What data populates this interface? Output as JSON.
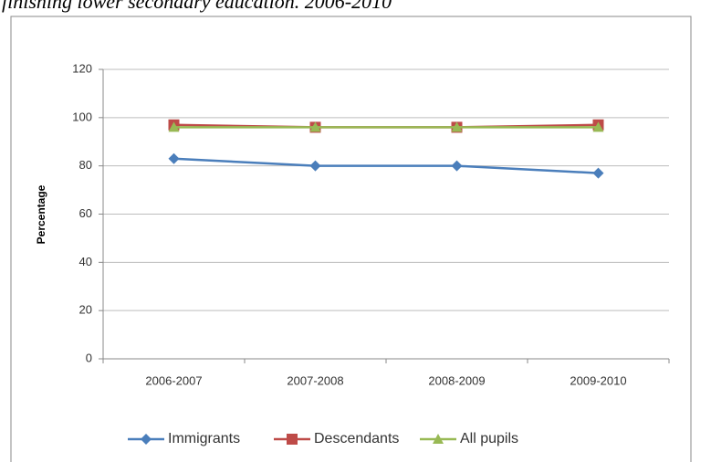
{
  "chart_data": {
    "type": "line",
    "title": "finishing lower secondary education. 2006-2010",
    "y_label": "Percentage",
    "categories": [
      "2006-2007",
      "2007-2008",
      "2008-2009",
      "2009-2010"
    ],
    "series": [
      {
        "name": "Immigrants",
        "color": "#4a7ebb",
        "marker": "diamond",
        "values": [
          83,
          80,
          80,
          77
        ]
      },
      {
        "name": "Descendants",
        "color": "#be4b48",
        "marker": "square",
        "values": [
          97,
          96,
          96,
          97
        ]
      },
      {
        "name": "All pupils",
        "color": "#98b954",
        "marker": "triangle",
        "values": [
          96,
          96,
          96,
          96
        ]
      }
    ],
    "ylim": [
      0,
      120
    ],
    "yticks": [
      0,
      20,
      40,
      60,
      80,
      100,
      120
    ],
    "grid": true,
    "legend": "bottom"
  }
}
